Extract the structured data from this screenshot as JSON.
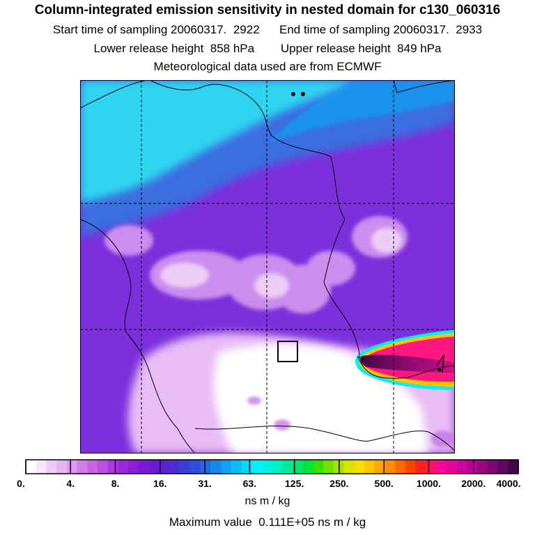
{
  "header": {
    "title": "Column-integrated emission sensitivity in nested domain for c130_060316",
    "line1": "Start time of sampling 20060317.  2922      End time of sampling 20060317.  2933",
    "line2": "Lower release height  858 hPa        Upper release height  849 hPa",
    "line3": "Meteorological data used are from ECMWF"
  },
  "colorbar": {
    "tick_labels": [
      "0.",
      "4.",
      "8.",
      "16.",
      "31.",
      "63.",
      "125.",
      "250.",
      "500.",
      "1000.",
      "2000.",
      "4000."
    ],
    "colors": [
      "#ffffff",
      "#f7e6fb",
      "#efccf7",
      "#e6b3f3",
      "#de99ef",
      "#d27ee9",
      "#c666e5",
      "#ba4ee1",
      "#ad38dd",
      "#9d26da",
      "#8c1ed6",
      "#7a1ad2",
      "#6a1cd0",
      "#5a24d0",
      "#4a30d2",
      "#3c3ed4",
      "#2e4edc",
      "#226ae4",
      "#1886ec",
      "#10a2f2",
      "#0cbcf6",
      "#06d8fa",
      "#00f0fc",
      "#00f2e2",
      "#00f0c0",
      "#00ec94",
      "#00e668",
      "#00e23c",
      "#38e000",
      "#70e200",
      "#a8e400",
      "#d8e400",
      "#f8dc00",
      "#ffc400",
      "#ffa800",
      "#ff8c00",
      "#ff6a00",
      "#ff4400",
      "#ff2220",
      "#ff1060",
      "#f8089a",
      "#e8049c",
      "#d00498",
      "#b80494",
      "#9a0684",
      "#7c0870",
      "#5e0a5c",
      "#420a48"
    ],
    "units": "ns m / kg"
  },
  "footer": {
    "max_value": "Maximum value  0.111E+05 ns m / kg"
  },
  "map": {
    "colors": {
      "background": "#7c30dc",
      "ocean_band": "#2ed4f0",
      "ocean_deep": "#3a6ee0",
      "low_region": "#f4d8f8",
      "low_core": "#ffffff",
      "plume_outer": "#ff1880",
      "plume_core": "#420a48"
    }
  }
}
